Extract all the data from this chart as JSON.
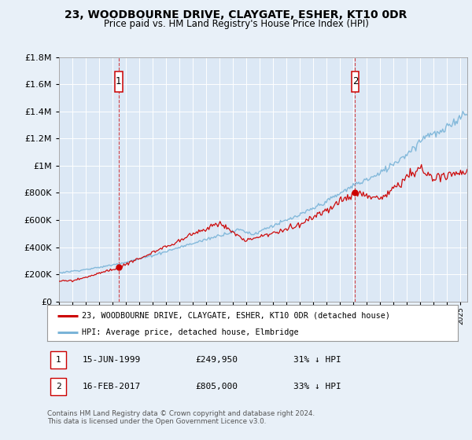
{
  "title": "23, WOODBOURNE DRIVE, CLAYGATE, ESHER, KT10 0DR",
  "subtitle": "Price paid vs. HM Land Registry's House Price Index (HPI)",
  "legend_line1": "23, WOODBOURNE DRIVE, CLAYGATE, ESHER, KT10 0DR (detached house)",
  "legend_line2": "HPI: Average price, detached house, Elmbridge",
  "annotation1_date": "15-JUN-1999",
  "annotation1_price": "£249,950",
  "annotation1_hpi": "31% ↓ HPI",
  "annotation2_date": "16-FEB-2017",
  "annotation2_price": "£805,000",
  "annotation2_hpi": "33% ↓ HPI",
  "footer": "Contains HM Land Registry data © Crown copyright and database right 2024.\nThis data is licensed under the Open Government Licence v3.0.",
  "sale1_year": 1999.46,
  "sale1_value": 249950,
  "sale2_year": 2017.12,
  "sale2_value": 805000,
  "hpi_color": "#7ab4d8",
  "price_color": "#cc0000",
  "bg_color": "#e8f0f8",
  "plot_bg": "#dce8f5",
  "ylim_max": 1800000,
  "xlim_start": 1995,
  "xlim_end": 2025.5,
  "yticks": [
    0,
    200000,
    400000,
    600000,
    800000,
    1000000,
    1200000,
    1400000,
    1600000,
    1800000
  ]
}
